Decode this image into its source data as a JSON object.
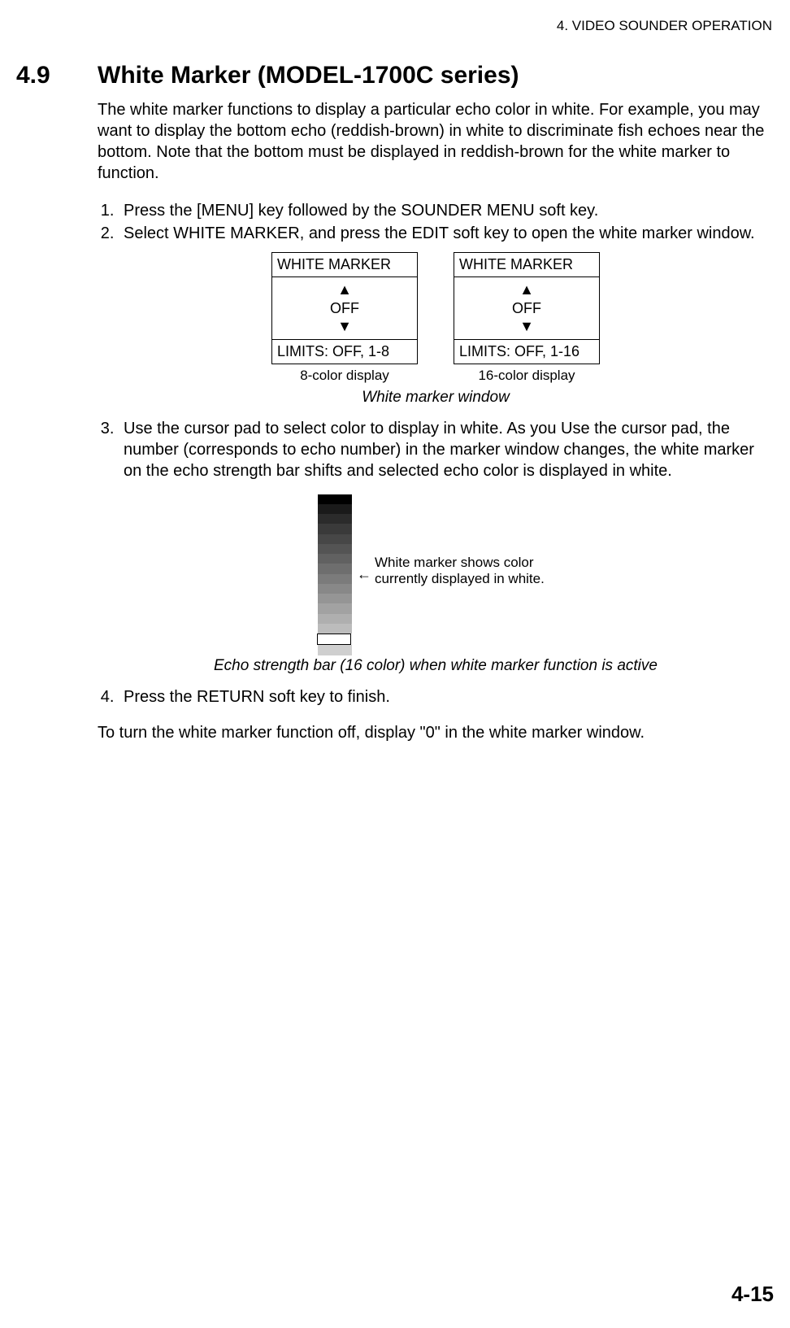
{
  "header": {
    "chapter": "4. VIDEO SOUNDER OPERATION"
  },
  "section": {
    "number": "4.9",
    "title": "White Marker (MODEL-1700C series)"
  },
  "intro": "The white marker functions to display a particular echo color in white. For example, you may want to display the bottom echo (reddish-brown) in white to discriminate fish echoes near the bottom. Note that the bottom must be displayed in reddish-brown for the white marker to function.",
  "steps": {
    "s1": "Press the [MENU] key followed by the SOUNDER MENU soft key.",
    "s2": "Select WHITE MARKER, and press the EDIT soft key to open the white marker window.",
    "s3": "Use the cursor pad to select color to display in white. As you Use the cursor pad, the number (corresponds to echo number) in the marker window changes, the white marker on the echo strength bar shifts and selected echo color is displayed in white.",
    "s4": "Press the RETURN soft key to finish."
  },
  "marker_windows": {
    "left": {
      "title": "WHITE MARKER",
      "arrow_up": "▲",
      "value": "OFF",
      "arrow_down": "▼",
      "limits": "LIMITS: OFF, 1-8",
      "sub": "8-color display"
    },
    "right": {
      "title": "WHITE MARKER",
      "arrow_up": "▲",
      "value": "OFF",
      "arrow_down": "▼",
      "limits": "LIMITS: OFF, 1-16",
      "sub": "16-color display"
    },
    "caption": "White marker window"
  },
  "echobar": {
    "colors": [
      "#000000",
      "#1a1a1a",
      "#2b2b2b",
      "#3a3a3a",
      "#474747",
      "#545454",
      "#616161",
      "#6e6e6e",
      "#7b7b7b",
      "#888888",
      "#959595",
      "#a2a2a2",
      "#afafaf",
      "#bcbcbc"
    ],
    "marker_index": 14,
    "after_colors": [
      "#cfcfcf"
    ],
    "note_arrow": "←",
    "note": "White marker shows color currently displayed in white.",
    "caption": "Echo strength bar (16 color) when white marker function is active"
  },
  "closing": "To turn the white marker function off, display \"0\" in the white marker window.",
  "page_number": "4-15"
}
